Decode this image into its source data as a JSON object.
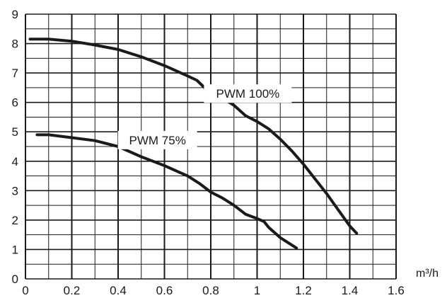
{
  "chart_data": {
    "type": "line",
    "title": "",
    "xlabel": "",
    "ylabel": "",
    "x_unit": "m³/h",
    "xlim": [
      0,
      1.6
    ],
    "ylim": [
      0,
      9
    ],
    "x_ticks": [
      "0",
      "0.2",
      "0.4",
      "0.6",
      "0.8",
      "1",
      "1.2",
      "1.4",
      "1.6"
    ],
    "y_ticks": [
      "0",
      "1",
      "2",
      "3",
      "4",
      "5",
      "6",
      "7",
      "8",
      "9"
    ],
    "grid": true,
    "line_color": "#1a1a1a",
    "grid_color": "#1a1a1a",
    "series": [
      {
        "name": "PWM 100%",
        "x": [
          0.02,
          0.1,
          0.2,
          0.3,
          0.4,
          0.5,
          0.6,
          0.7,
          0.74,
          0.78,
          0.85,
          0.9,
          0.95,
          1.0,
          1.05,
          1.1,
          1.15,
          1.2,
          1.25,
          1.3,
          1.35,
          1.4,
          1.43
        ],
        "values": [
          8.15,
          8.15,
          8.08,
          7.95,
          7.8,
          7.55,
          7.25,
          6.9,
          6.75,
          6.45,
          6.15,
          5.9,
          5.55,
          5.35,
          5.1,
          4.75,
          4.35,
          3.9,
          3.4,
          2.9,
          2.35,
          1.8,
          1.55
        ]
      },
      {
        "name": "PWM 75%",
        "x": [
          0.05,
          0.1,
          0.2,
          0.3,
          0.4,
          0.5,
          0.6,
          0.7,
          0.75,
          0.8,
          0.85,
          0.9,
          0.95,
          1.0,
          1.03,
          1.05,
          1.1,
          1.15,
          1.17
        ],
        "values": [
          4.9,
          4.9,
          4.8,
          4.7,
          4.5,
          4.15,
          3.85,
          3.5,
          3.25,
          2.95,
          2.75,
          2.5,
          2.2,
          2.05,
          1.95,
          1.75,
          1.4,
          1.15,
          1.05
        ]
      }
    ]
  }
}
